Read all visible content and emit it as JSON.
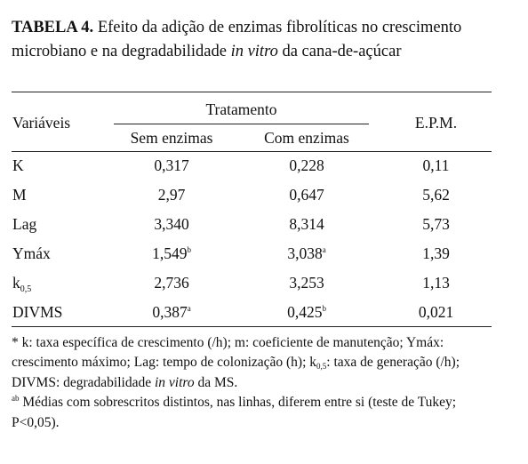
{
  "title": {
    "label": "TABELA 4.",
    "text_part1": " Efeito da adição de enzimas fibrolíticas no crescimento microbiano e na degradabilidade ",
    "text_italic": "in vitro",
    "text_part2": " da cana-de-açúcar"
  },
  "header": {
    "variables": "Variáveis",
    "treatment": "Tratamento",
    "without_enzymes": "Sem enzimas",
    "with_enzymes": "Com enzimas",
    "epm": "E.P.M."
  },
  "rows": [
    {
      "var": "K",
      "var_sub": "",
      "sem": "0,317",
      "sem_sup": "",
      "com": "0,228",
      "com_sup": "",
      "epm": "0,11"
    },
    {
      "var": "M",
      "var_sub": "",
      "sem": "2,97",
      "sem_sup": "",
      "com": "0,647",
      "com_sup": "",
      "epm": "5,62"
    },
    {
      "var": "Lag",
      "var_sub": "",
      "sem": "3,340",
      "sem_sup": "",
      "com": "8,314",
      "com_sup": "",
      "epm": "5,73"
    },
    {
      "var": "Ymáx",
      "var_sub": "",
      "sem": "1,549",
      "sem_sup": "b",
      "com": "3,038",
      "com_sup": "a",
      "epm": "1,39"
    },
    {
      "var": "k",
      "var_sub": "0,5",
      "sem": "2,736",
      "sem_sup": "",
      "com": "3,253",
      "com_sup": "",
      "epm": "1,13"
    },
    {
      "var": "DIVMS",
      "var_sub": "",
      "sem": "0,387",
      "sem_sup": "a",
      "com": "0,425",
      "com_sup": "b",
      "epm": "0,021"
    }
  ],
  "footnote": {
    "p1": "* k: taxa específica de crescimento (/h); m: coeficiente de manutenção; Ymáx: crescimento máximo; Lag: tempo de colonização (h); k",
    "p1_sub": "0,5",
    "p2": ": taxa de generação (/h); DIVMS: degradabilidade ",
    "p2_italic": "in vitro",
    "p3": " da MS.",
    "ab_sup": "ab",
    "ab_text": " Médias com sobrescritos distintos, nas linhas, diferem entre si (teste de Tukey; P<0,05)."
  }
}
